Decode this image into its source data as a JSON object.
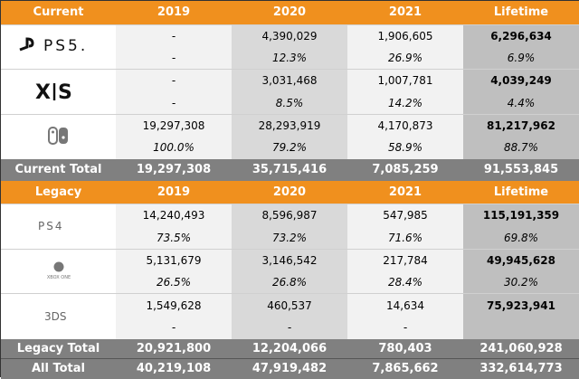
{
  "current": {
    "header": [
      "Current",
      "2019",
      "2020",
      "2021",
      "Lifetime"
    ],
    "platforms": [
      {
        "logo": "ps5-logo",
        "logo_text": "PS5",
        "units": [
          "-",
          "4,390,029",
          "1,906,605",
          "6,296,634"
        ],
        "share": [
          "-",
          "12.3%",
          "26.9%",
          "6.9%"
        ]
      },
      {
        "logo": "xbox-series-xs-logo",
        "logo_text": "X|S",
        "units": [
          "-",
          "3,031,468",
          "1,007,781",
          "4,039,249"
        ],
        "share": [
          "-",
          "8.5%",
          "14.2%",
          "4.4%"
        ]
      },
      {
        "logo": "nintendo-switch-logo",
        "units": [
          "19,297,308",
          "28,293,919",
          "4,170,873",
          "81,217,962"
        ],
        "share": [
          "100.0%",
          "79.2%",
          "58.9%",
          "88.7%"
        ]
      }
    ],
    "total": [
      "Current Total",
      "19,297,308",
      "35,715,416",
      "7,085,259",
      "91,553,845"
    ]
  },
  "legacy": {
    "header": [
      "Legacy",
      "2019",
      "2020",
      "2021",
      "Lifetime"
    ],
    "platforms": [
      {
        "logo": "ps4-logo",
        "logo_text": "PS4",
        "units": [
          "14,240,493",
          "8,596,987",
          "547,985",
          "115,191,359"
        ],
        "share": [
          "73.5%",
          "73.2%",
          "71.6%",
          "69.8%"
        ]
      },
      {
        "logo": "xbox-one-logo",
        "logo_text": "XBOX ONE",
        "units": [
          "5,131,679",
          "3,146,542",
          "217,784",
          "49,945,628"
        ],
        "share": [
          "26.5%",
          "26.8%",
          "28.4%",
          "30.2%"
        ]
      },
      {
        "logo": "3ds-logo",
        "logo_text": "3DS",
        "units": [
          "1,549,628",
          "460,537",
          "14,634",
          "75,923,941"
        ],
        "share": [
          "-",
          "-",
          "-",
          ""
        ]
      }
    ],
    "total": [
      "Legacy Total",
      "20,921,800",
      "12,204,066",
      "780,403",
      "241,060,928"
    ]
  },
  "all_total": [
    "All Total",
    "40,219,108",
    "47,919,482",
    "7,865,662",
    "332,614,773"
  ],
  "colors": {
    "header": "#f0901e",
    "total": "#808080",
    "col_light": "#f2f2f2",
    "col_mid": "#d9d9d9",
    "col_lifetime": "#bfbfbf"
  }
}
